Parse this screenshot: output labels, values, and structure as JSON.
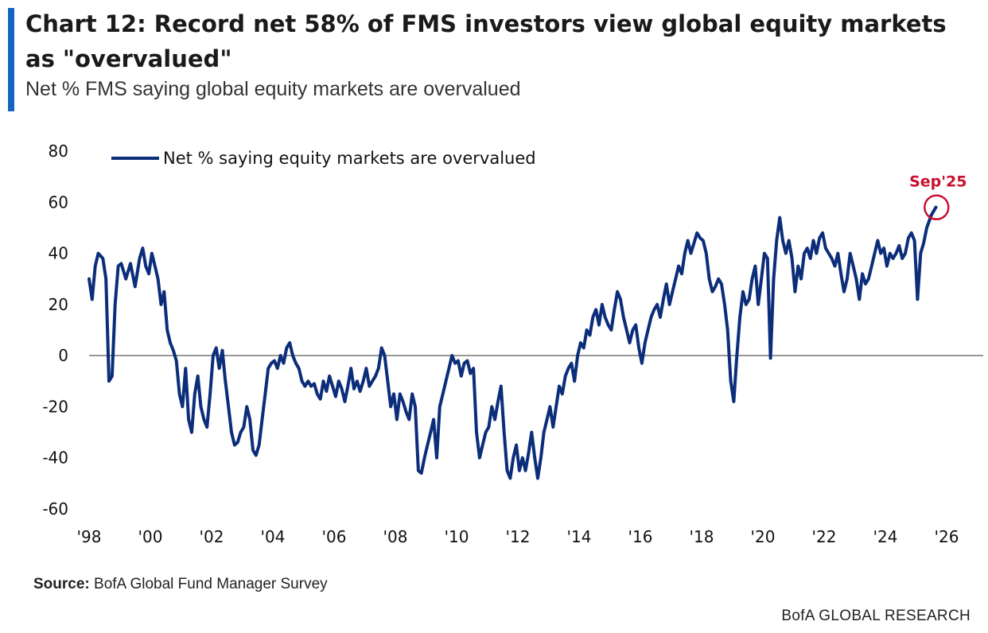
{
  "header": {
    "title": "Chart 12: Record net 58% of FMS investors view global equity markets as \"overvalued\"",
    "subtitle": "Net % FMS saying global equity markets are overvalued",
    "accent_color": "#1565c0"
  },
  "footer": {
    "source_label": "Source:",
    "source_text": "BofA Global Fund Manager Survey",
    "brand": "BofA GLOBAL RESEARCH"
  },
  "chart_data": {
    "type": "line",
    "title": "Chart 12: Record net 58% of FMS investors view global equity markets as \"overvalued\"",
    "subtitle": "Net % FMS saying global equity markets are overvalued",
    "xlabel": "",
    "ylabel": "",
    "xlim": [
      1998,
      2026
    ],
    "ylim": [
      -60,
      80
    ],
    "y_ticks": [
      80,
      60,
      40,
      20,
      0,
      -20,
      -40,
      -60
    ],
    "x_ticks": [
      {
        "value": 1998,
        "label": "'98"
      },
      {
        "value": 2000,
        "label": "'00"
      },
      {
        "value": 2002,
        "label": "'02"
      },
      {
        "value": 2004,
        "label": "'04"
      },
      {
        "value": 2006,
        "label": "'06"
      },
      {
        "value": 2008,
        "label": "'08"
      },
      {
        "value": 2010,
        "label": "'10"
      },
      {
        "value": 2012,
        "label": "'12"
      },
      {
        "value": 2014,
        "label": "'14"
      },
      {
        "value": 2016,
        "label": "'16"
      },
      {
        "value": 2018,
        "label": "'18"
      },
      {
        "value": 2020,
        "label": "'20"
      },
      {
        "value": 2022,
        "label": "'22"
      },
      {
        "value": 2024,
        "label": "'24"
      },
      {
        "value": 2026,
        "label": "'26"
      }
    ],
    "legend": "top-left",
    "grid": false,
    "zero_line": true,
    "line_color": "#0b2d7a",
    "highlight_color": "#c8102e",
    "series": [
      {
        "name": "Net % saying equity markets are overvalued",
        "points": [
          [
            1998.0,
            30
          ],
          [
            1998.1,
            22
          ],
          [
            1998.2,
            35
          ],
          [
            1998.3,
            40
          ],
          [
            1998.45,
            38
          ],
          [
            1998.55,
            30
          ],
          [
            1998.65,
            -10
          ],
          [
            1998.75,
            -8
          ],
          [
            1998.85,
            20
          ],
          [
            1998.95,
            35
          ],
          [
            1999.05,
            36
          ],
          [
            1999.2,
            30
          ],
          [
            1999.35,
            36
          ],
          [
            1999.5,
            27
          ],
          [
            1999.65,
            38
          ],
          [
            1999.75,
            42
          ],
          [
            1999.85,
            35
          ],
          [
            1999.95,
            32
          ],
          [
            2000.05,
            40
          ],
          [
            2000.15,
            35
          ],
          [
            2000.25,
            30
          ],
          [
            2000.35,
            20
          ],
          [
            2000.45,
            25
          ],
          [
            2000.55,
            10
          ],
          [
            2000.65,
            5
          ],
          [
            2000.75,
            2
          ],
          [
            2000.85,
            -2
          ],
          [
            2000.95,
            -15
          ],
          [
            2001.05,
            -20
          ],
          [
            2001.15,
            -5
          ],
          [
            2001.25,
            -25
          ],
          [
            2001.35,
            -30
          ],
          [
            2001.45,
            -15
          ],
          [
            2001.55,
            -8
          ],
          [
            2001.65,
            -20
          ],
          [
            2001.75,
            -25
          ],
          [
            2001.85,
            -28
          ],
          [
            2001.95,
            -15
          ],
          [
            2002.05,
            0
          ],
          [
            2002.15,
            3
          ],
          [
            2002.25,
            -5
          ],
          [
            2002.35,
            2
          ],
          [
            2002.45,
            -10
          ],
          [
            2002.55,
            -20
          ],
          [
            2002.65,
            -30
          ],
          [
            2002.75,
            -35
          ],
          [
            2002.85,
            -34
          ],
          [
            2002.95,
            -30
          ],
          [
            2003.05,
            -28
          ],
          [
            2003.15,
            -20
          ],
          [
            2003.25,
            -25
          ],
          [
            2003.35,
            -37
          ],
          [
            2003.45,
            -39
          ],
          [
            2003.55,
            -35
          ],
          [
            2003.65,
            -25
          ],
          [
            2003.75,
            -15
          ],
          [
            2003.85,
            -5
          ],
          [
            2003.95,
            -3
          ],
          [
            2004.05,
            -2
          ],
          [
            2004.15,
            -5
          ],
          [
            2004.25,
            0
          ],
          [
            2004.35,
            -3
          ],
          [
            2004.45,
            3
          ],
          [
            2004.55,
            5
          ],
          [
            2004.65,
            0
          ],
          [
            2004.75,
            -3
          ],
          [
            2004.85,
            -5
          ],
          [
            2004.95,
            -10
          ],
          [
            2005.05,
            -12
          ],
          [
            2005.15,
            -10
          ],
          [
            2005.25,
            -12
          ],
          [
            2005.35,
            -11
          ],
          [
            2005.45,
            -15
          ],
          [
            2005.55,
            -17
          ],
          [
            2005.65,
            -10
          ],
          [
            2005.75,
            -14
          ],
          [
            2005.85,
            -8
          ],
          [
            2005.95,
            -12
          ],
          [
            2006.05,
            -16
          ],
          [
            2006.15,
            -10
          ],
          [
            2006.25,
            -13
          ],
          [
            2006.35,
            -18
          ],
          [
            2006.45,
            -12
          ],
          [
            2006.55,
            -5
          ],
          [
            2006.65,
            -13
          ],
          [
            2006.75,
            -10
          ],
          [
            2006.85,
            -14
          ],
          [
            2006.95,
            -10
          ],
          [
            2007.05,
            -5
          ],
          [
            2007.15,
            -12
          ],
          [
            2007.25,
            -10
          ],
          [
            2007.35,
            -8
          ],
          [
            2007.45,
            -5
          ],
          [
            2007.55,
            3
          ],
          [
            2007.65,
            0
          ],
          [
            2007.75,
            -10
          ],
          [
            2007.85,
            -20
          ],
          [
            2007.95,
            -15
          ],
          [
            2008.05,
            -25
          ],
          [
            2008.15,
            -15
          ],
          [
            2008.25,
            -18
          ],
          [
            2008.35,
            -22
          ],
          [
            2008.45,
            -25
          ],
          [
            2008.55,
            -15
          ],
          [
            2008.65,
            -20
          ],
          [
            2008.75,
            -45
          ],
          [
            2008.85,
            -46
          ],
          [
            2008.95,
            -40
          ],
          [
            2009.05,
            -35
          ],
          [
            2009.15,
            -30
          ],
          [
            2009.25,
            -25
          ],
          [
            2009.35,
            -40
          ],
          [
            2009.45,
            -20
          ],
          [
            2009.55,
            -15
          ],
          [
            2009.65,
            -10
          ],
          [
            2009.75,
            -5
          ],
          [
            2009.85,
            0
          ],
          [
            2009.95,
            -3
          ],
          [
            2010.05,
            -2
          ],
          [
            2010.15,
            -8
          ],
          [
            2010.25,
            -3
          ],
          [
            2010.35,
            -2
          ],
          [
            2010.45,
            -7
          ],
          [
            2010.55,
            -5
          ],
          [
            2010.65,
            -30
          ],
          [
            2010.75,
            -40
          ],
          [
            2010.85,
            -35
          ],
          [
            2010.95,
            -30
          ],
          [
            2011.05,
            -28
          ],
          [
            2011.15,
            -20
          ],
          [
            2011.25,
            -25
          ],
          [
            2011.35,
            -18
          ],
          [
            2011.45,
            -12
          ],
          [
            2011.55,
            -30
          ],
          [
            2011.65,
            -45
          ],
          [
            2011.75,
            -48
          ],
          [
            2011.85,
            -40
          ],
          [
            2011.95,
            -35
          ],
          [
            2012.05,
            -45
          ],
          [
            2012.15,
            -40
          ],
          [
            2012.25,
            -45
          ],
          [
            2012.35,
            -38
          ],
          [
            2012.45,
            -30
          ],
          [
            2012.55,
            -40
          ],
          [
            2012.65,
            -48
          ],
          [
            2012.75,
            -40
          ],
          [
            2012.85,
            -30
          ],
          [
            2012.95,
            -25
          ],
          [
            2013.05,
            -20
          ],
          [
            2013.15,
            -28
          ],
          [
            2013.25,
            -20
          ],
          [
            2013.35,
            -12
          ],
          [
            2013.45,
            -15
          ],
          [
            2013.55,
            -8
          ],
          [
            2013.65,
            -5
          ],
          [
            2013.75,
            -3
          ],
          [
            2013.85,
            -10
          ],
          [
            2013.95,
            0
          ],
          [
            2014.05,
            5
          ],
          [
            2014.15,
            3
          ],
          [
            2014.25,
            10
          ],
          [
            2014.35,
            8
          ],
          [
            2014.45,
            15
          ],
          [
            2014.55,
            18
          ],
          [
            2014.65,
            12
          ],
          [
            2014.75,
            20
          ],
          [
            2014.85,
            15
          ],
          [
            2014.95,
            12
          ],
          [
            2015.05,
            10
          ],
          [
            2015.15,
            18
          ],
          [
            2015.25,
            25
          ],
          [
            2015.35,
            22
          ],
          [
            2015.45,
            15
          ],
          [
            2015.55,
            10
          ],
          [
            2015.65,
            5
          ],
          [
            2015.75,
            10
          ],
          [
            2015.85,
            12
          ],
          [
            2015.95,
            3
          ],
          [
            2016.05,
            -3
          ],
          [
            2016.15,
            5
          ],
          [
            2016.25,
            10
          ],
          [
            2016.35,
            15
          ],
          [
            2016.45,
            18
          ],
          [
            2016.55,
            20
          ],
          [
            2016.65,
            15
          ],
          [
            2016.75,
            22
          ],
          [
            2016.85,
            28
          ],
          [
            2016.95,
            20
          ],
          [
            2017.05,
            25
          ],
          [
            2017.15,
            30
          ],
          [
            2017.25,
            35
          ],
          [
            2017.35,
            32
          ],
          [
            2017.45,
            40
          ],
          [
            2017.55,
            45
          ],
          [
            2017.65,
            40
          ],
          [
            2017.75,
            44
          ],
          [
            2017.85,
            48
          ],
          [
            2017.95,
            46
          ],
          [
            2018.05,
            45
          ],
          [
            2018.15,
            40
          ],
          [
            2018.25,
            30
          ],
          [
            2018.35,
            25
          ],
          [
            2018.45,
            27
          ],
          [
            2018.55,
            30
          ],
          [
            2018.65,
            28
          ],
          [
            2018.75,
            20
          ],
          [
            2018.85,
            10
          ],
          [
            2018.95,
            -10
          ],
          [
            2019.05,
            -18
          ],
          [
            2019.15,
            0
          ],
          [
            2019.25,
            15
          ],
          [
            2019.35,
            25
          ],
          [
            2019.45,
            20
          ],
          [
            2019.55,
            22
          ],
          [
            2019.65,
            30
          ],
          [
            2019.75,
            35
          ],
          [
            2019.85,
            20
          ],
          [
            2019.95,
            30
          ],
          [
            2020.05,
            40
          ],
          [
            2020.15,
            38
          ],
          [
            2020.25,
            -1
          ],
          [
            2020.35,
            30
          ],
          [
            2020.45,
            45
          ],
          [
            2020.55,
            54
          ],
          [
            2020.65,
            45
          ],
          [
            2020.75,
            40
          ],
          [
            2020.85,
            45
          ],
          [
            2020.95,
            38
          ],
          [
            2021.05,
            25
          ],
          [
            2021.15,
            35
          ],
          [
            2021.25,
            30
          ],
          [
            2021.35,
            40
          ],
          [
            2021.45,
            42
          ],
          [
            2021.55,
            38
          ],
          [
            2021.65,
            45
          ],
          [
            2021.75,
            40
          ],
          [
            2021.85,
            46
          ],
          [
            2021.95,
            48
          ],
          [
            2022.05,
            42
          ],
          [
            2022.15,
            40
          ],
          [
            2022.25,
            38
          ],
          [
            2022.35,
            35
          ],
          [
            2022.45,
            40
          ],
          [
            2022.55,
            32
          ],
          [
            2022.65,
            25
          ],
          [
            2022.75,
            30
          ],
          [
            2022.85,
            40
          ],
          [
            2022.95,
            35
          ],
          [
            2023.05,
            30
          ],
          [
            2023.15,
            22
          ],
          [
            2023.25,
            32
          ],
          [
            2023.35,
            28
          ],
          [
            2023.45,
            30
          ],
          [
            2023.55,
            35
          ],
          [
            2023.65,
            40
          ],
          [
            2023.75,
            45
          ],
          [
            2023.85,
            40
          ],
          [
            2023.95,
            42
          ],
          [
            2024.05,
            35
          ],
          [
            2024.15,
            40
          ],
          [
            2024.25,
            38
          ],
          [
            2024.35,
            40
          ],
          [
            2024.45,
            43
          ],
          [
            2024.55,
            38
          ],
          [
            2024.65,
            40
          ],
          [
            2024.75,
            46
          ],
          [
            2024.85,
            48
          ],
          [
            2024.95,
            45
          ],
          [
            2025.05,
            22
          ],
          [
            2025.15,
            40
          ],
          [
            2025.25,
            44
          ],
          [
            2025.35,
            50
          ],
          [
            2025.5,
            55
          ],
          [
            2025.65,
            58
          ]
        ]
      }
    ],
    "annotations": [
      {
        "text": "Sep'25",
        "x": 2025.67,
        "y": 58,
        "style": "circle"
      }
    ]
  }
}
